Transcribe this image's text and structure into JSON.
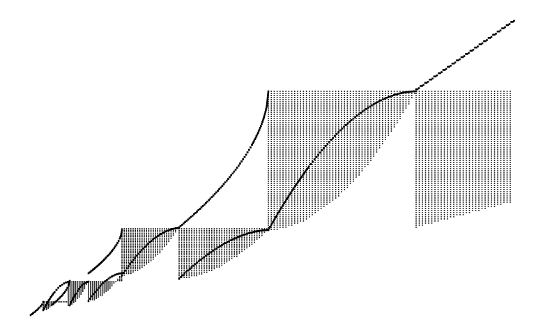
{
  "figure": {
    "description_text": "",
    "colors": {
      "background": "#ffffff",
      "foreground": "#000000"
    },
    "style": "stippled dot-line fractal staircase, no axes, no labels"
  }
}
